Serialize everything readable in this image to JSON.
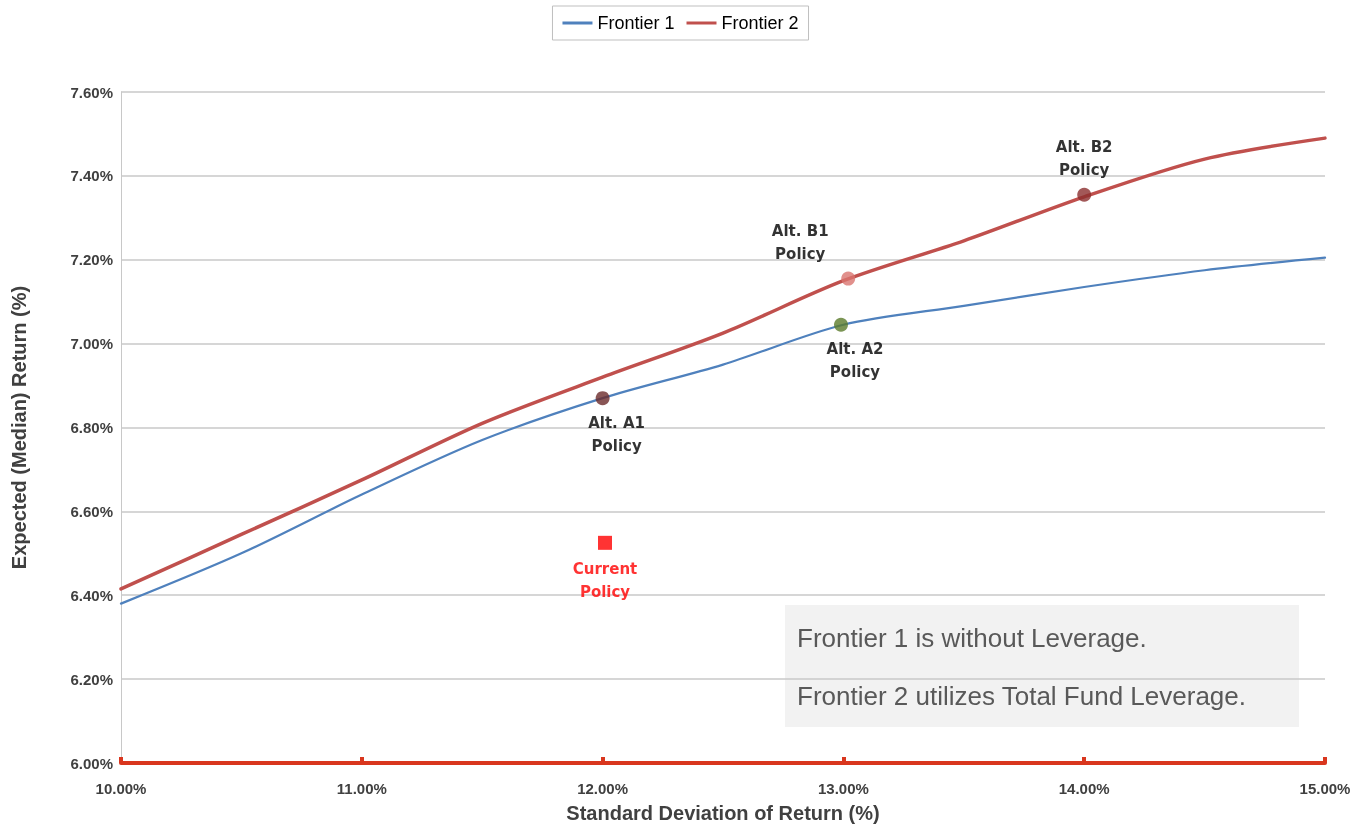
{
  "chart_data": {
    "type": "line",
    "xlabel": "Standard Deviation of Return (%)",
    "ylabel": "Expected (Median) Return (%)",
    "x": [
      10,
      10.5,
      11,
      11.5,
      12,
      12.5,
      13,
      13.5,
      14,
      14.5,
      15
    ],
    "xlim": [
      10,
      15
    ],
    "xticks": [
      {
        "value": 10,
        "label": "10.00%"
      },
      {
        "value": 11,
        "label": "11.00%"
      },
      {
        "value": 12,
        "label": "12.00%"
      },
      {
        "value": 13,
        "label": "13.00%"
      },
      {
        "value": 14,
        "label": "14.00%"
      },
      {
        "value": 15,
        "label": "15.00%"
      }
    ],
    "ylim": [
      6,
      7.6
    ],
    "yticks": [
      {
        "value": 6,
        "label": "6.00%"
      },
      {
        "value": 6.2,
        "label": "6.20%"
      },
      {
        "value": 6.4,
        "label": "6.40%"
      },
      {
        "value": 6.6,
        "label": "6.60%"
      },
      {
        "value": 6.8,
        "label": "6.80%"
      },
      {
        "value": 7,
        "label": "7.00%"
      },
      {
        "value": 7.2,
        "label": "7.20%"
      },
      {
        "value": 7.4,
        "label": "7.40%"
      },
      {
        "value": 7.6,
        "label": "7.60%"
      }
    ],
    "grid": "y",
    "legend": "top",
    "marker": "none",
    "line_style": "solid",
    "series": [
      {
        "name": "Frontier 1",
        "color": "#4f81bd",
        "values": [
          6.38,
          6.5,
          6.64,
          6.77,
          6.87,
          6.95,
          7.045,
          7.09,
          7.135,
          7.175,
          7.205
        ]
      },
      {
        "name": "Frontier 2",
        "color": "#c0504d",
        "values": [
          6.415,
          6.545,
          6.675,
          6.81,
          6.92,
          7.025,
          7.15,
          7.245,
          7.35,
          7.44,
          7.49
        ]
      },
      {
        "name": "Alt. A1 Policy",
        "type": "scatter",
        "marker": "circle",
        "color": "#6b2a2a",
        "x": [
          12
        ],
        "values": [
          6.87
        ]
      },
      {
        "name": "Alt. A2 Policy",
        "type": "scatter",
        "marker": "circle",
        "color": "#5a7a2a",
        "x": [
          12.99
        ],
        "values": [
          7.045
        ]
      },
      {
        "name": "Alt. B1 Policy",
        "type": "scatter",
        "marker": "circle",
        "color": "#d9746f",
        "x": [
          13.02
        ],
        "values": [
          7.155
        ]
      },
      {
        "name": "Alt. B2 Policy",
        "type": "scatter",
        "marker": "circle",
        "color": "#8b2e2e",
        "x": [
          14
        ],
        "values": [
          7.355
        ]
      },
      {
        "name": "Current Policy",
        "type": "scatter",
        "marker": "square",
        "color": "#ff0000",
        "x": [
          12.01
        ],
        "values": [
          6.525
        ]
      }
    ],
    "annotations": [
      "Frontier 1 is without Leverage.",
      "Frontier 2 utilizes Total Fund Leverage."
    ]
  }
}
